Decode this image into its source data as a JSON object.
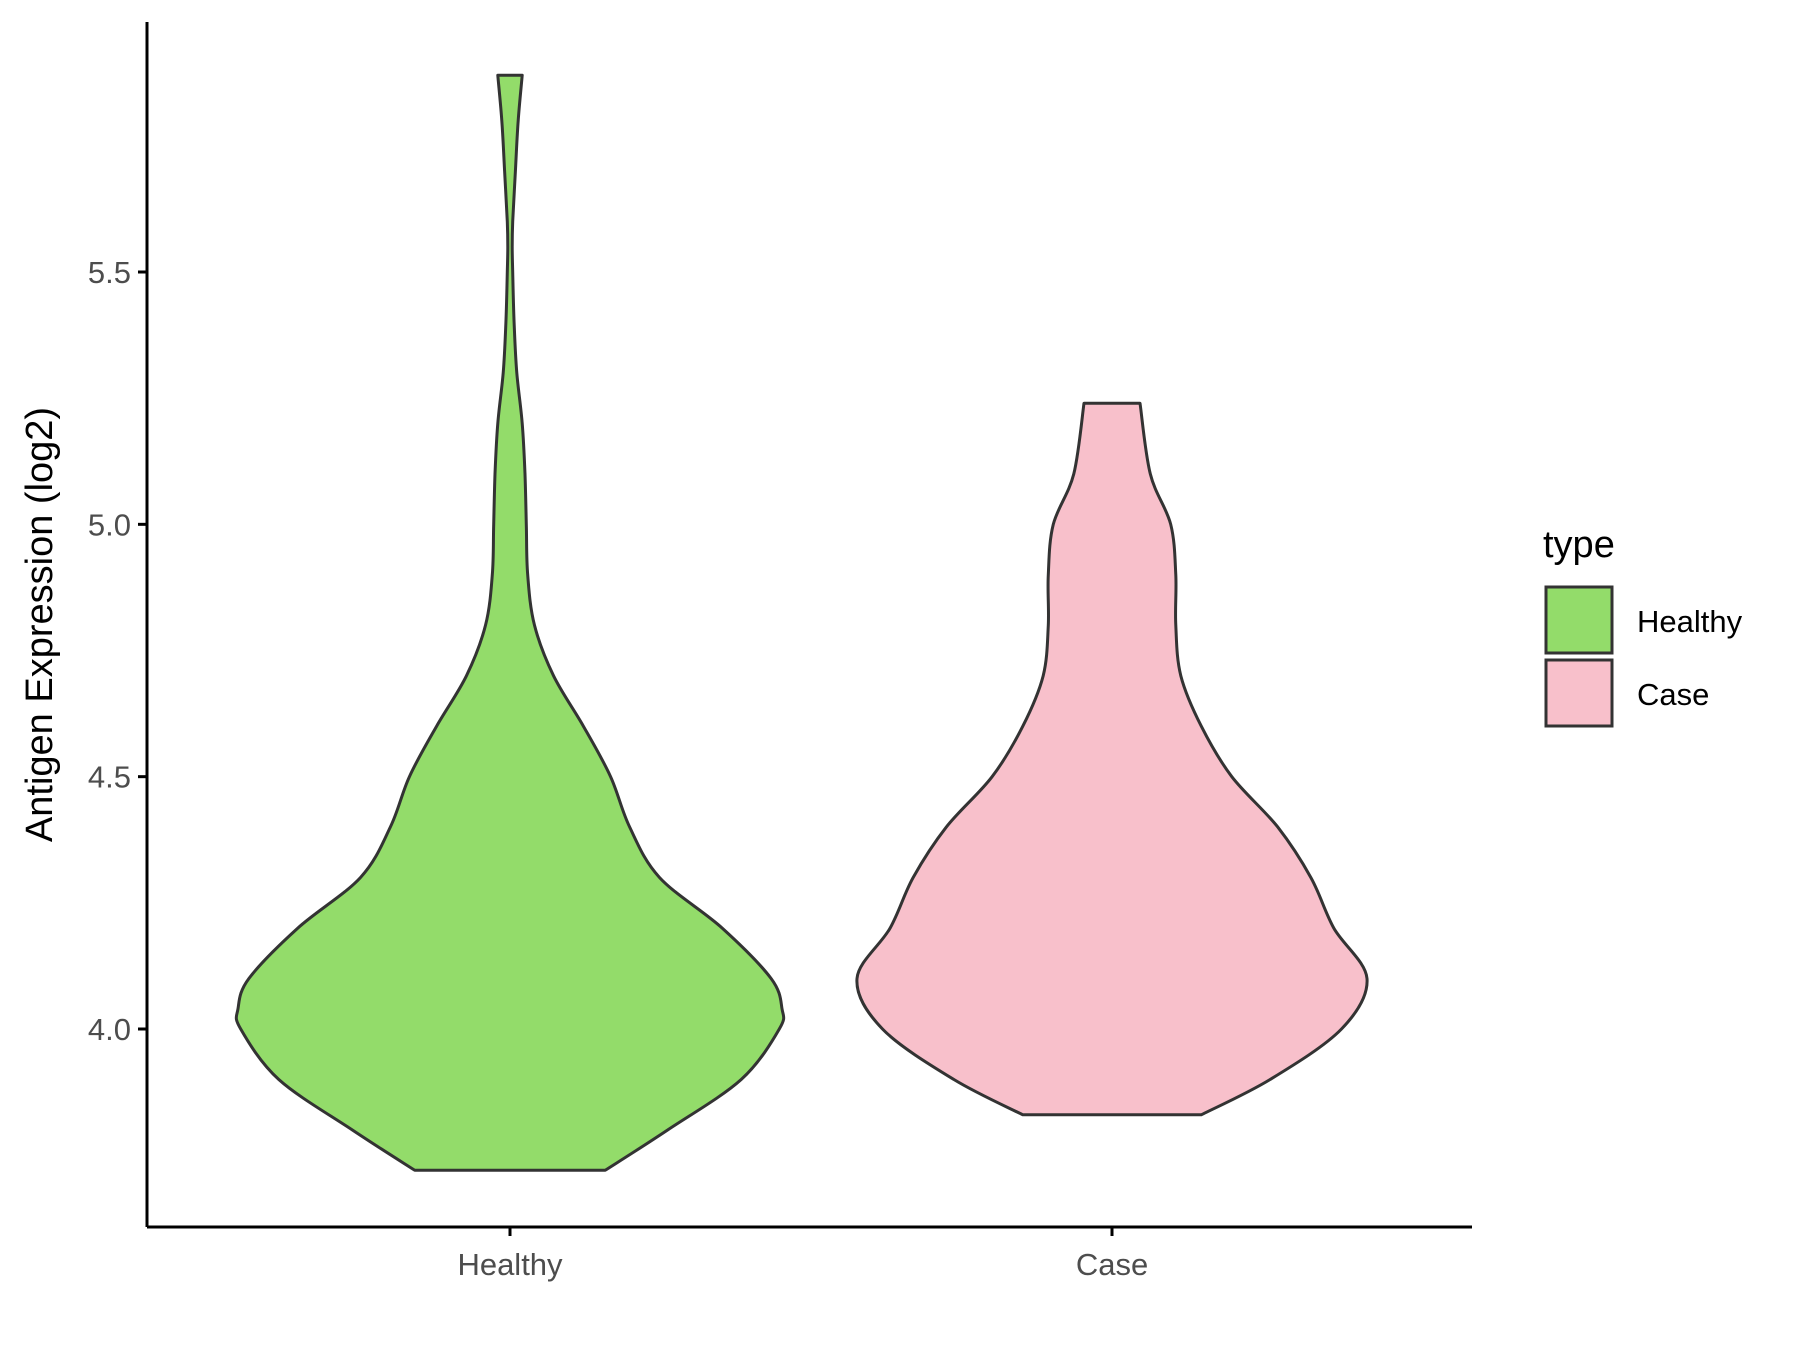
{
  "chart_data": {
    "type": "violin",
    "ylabel": "Antigen Expression (log2)",
    "xlabel": "",
    "categories": [
      "Healthy",
      "Case"
    ],
    "ylim": [
      3.6,
      6.0
    ],
    "yticks": [
      4.0,
      4.5,
      5.0,
      5.5
    ],
    "ytick_labels": [
      "4.0",
      "4.5",
      "5.0",
      "5.5"
    ],
    "grid": false,
    "legend": {
      "title": "type",
      "placement": "right",
      "entries": [
        {
          "label": "Healthy",
          "color": "#93DC6A"
        },
        {
          "label": "Case",
          "color": "#F8C0CB"
        }
      ]
    },
    "series": [
      {
        "category": "Healthy",
        "color": "#93DC6A",
        "min": 3.72,
        "max": 5.89,
        "density_width": [
          [
            3.72,
            0.35
          ],
          [
            3.8,
            0.58
          ],
          [
            3.9,
            0.85
          ],
          [
            4.0,
            0.99
          ],
          [
            4.04,
            1.0
          ],
          [
            4.1,
            0.96
          ],
          [
            4.2,
            0.78
          ],
          [
            4.3,
            0.55
          ],
          [
            4.4,
            0.44
          ],
          [
            4.5,
            0.37
          ],
          [
            4.6,
            0.27
          ],
          [
            4.7,
            0.16
          ],
          [
            4.8,
            0.09
          ],
          [
            4.9,
            0.065
          ],
          [
            5.0,
            0.06
          ],
          [
            5.1,
            0.055
          ],
          [
            5.2,
            0.045
          ],
          [
            5.3,
            0.025
          ],
          [
            5.4,
            0.015
          ],
          [
            5.5,
            0.01
          ],
          [
            5.55,
            0.008
          ],
          [
            5.6,
            0.01
          ],
          [
            5.7,
            0.02
          ],
          [
            5.8,
            0.03
          ],
          [
            5.89,
            0.045
          ]
        ]
      },
      {
        "category": "Case",
        "color": "#F8C0CB",
        "min": 3.83,
        "max": 5.24,
        "density_width": [
          [
            3.83,
            0.35
          ],
          [
            3.9,
            0.62
          ],
          [
            4.0,
            0.9
          ],
          [
            4.1,
            1.0
          ],
          [
            4.2,
            0.87
          ],
          [
            4.3,
            0.78
          ],
          [
            4.4,
            0.65
          ],
          [
            4.5,
            0.47
          ],
          [
            4.6,
            0.35
          ],
          [
            4.7,
            0.27
          ],
          [
            4.8,
            0.25
          ],
          [
            4.9,
            0.25
          ],
          [
            5.0,
            0.23
          ],
          [
            5.1,
            0.15
          ],
          [
            5.24,
            0.11
          ]
        ]
      }
    ]
  }
}
